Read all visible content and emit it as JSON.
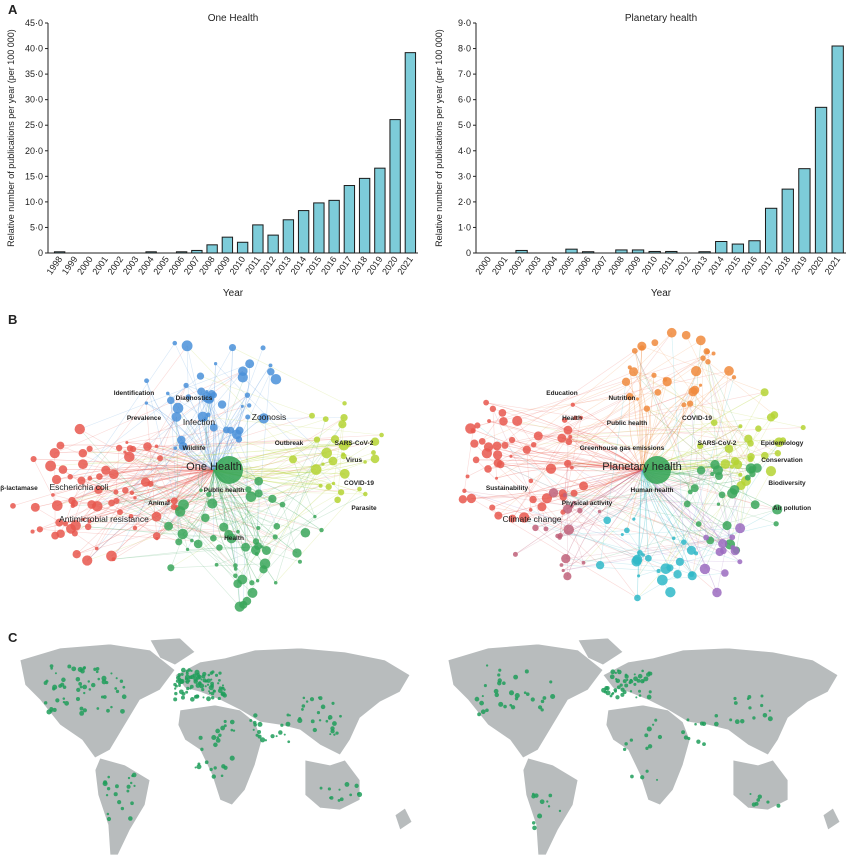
{
  "panel_labels": {
    "a": "A",
    "b": "B",
    "c": "C"
  },
  "colors": {
    "bar_fill": "#7dccd9",
    "bar_stroke": "#1a1a1a",
    "network_clusters": [
      "#e8574d",
      "#4a90d9",
      "#b5d334",
      "#3aa65a",
      "#f08a3c",
      "#9b6bbf",
      "#2fb8c8",
      "#c0617a"
    ],
    "map_land": "#b8bcbd",
    "map_points": "#1f9e5a"
  },
  "chart_data": [
    {
      "type": "bar",
      "title": "One Health",
      "xlabel": "Year",
      "ylabel": "Relative number of publications per year (per 100 000)",
      "ylim": [
        0,
        45
      ],
      "yticks": [
        "0",
        "5·0",
        "10·0",
        "15·0",
        "20·0",
        "25·0",
        "30·0",
        "35·0",
        "40·0",
        "45·0"
      ],
      "yticks_values": [
        0,
        5,
        10,
        15,
        20,
        25,
        30,
        35,
        40,
        45
      ],
      "categories": [
        "1998",
        "1999",
        "2000",
        "2001",
        "2002",
        "2003",
        "2004",
        "2005",
        "2006",
        "2007",
        "2008",
        "2009",
        "2010",
        "2011",
        "2012",
        "2013",
        "2014",
        "2015",
        "2016",
        "2017",
        "2018",
        "2019",
        "2020",
        "2021"
      ],
      "values": [
        0.2,
        0,
        0,
        0,
        0,
        0,
        0.1,
        0,
        0.1,
        0.5,
        1.6,
        3.1,
        2.1,
        5.5,
        3.5,
        6.5,
        8.3,
        9.8,
        10.3,
        13.2,
        14.6,
        16.6,
        26.1,
        39.2
      ],
      "grid": false
    },
    {
      "type": "bar",
      "title": "Planetary  health",
      "xlabel": "Year",
      "ylabel": "Relative number of publications per year (per 100 000)",
      "ylim": [
        0,
        9
      ],
      "yticks": [
        "0",
        "1·0",
        "2·0",
        "3·0",
        "4·0",
        "5·0",
        "6·0",
        "7·0",
        "8·0",
        "9·0"
      ],
      "yticks_values": [
        0,
        1,
        2,
        3,
        4,
        5,
        6,
        7,
        8,
        9
      ],
      "categories": [
        "2000",
        "2001",
        "2002",
        "2003",
        "2004",
        "2005",
        "2006",
        "2007",
        "2008",
        "2009",
        "2010",
        "2011",
        "2012",
        "2013",
        "2014",
        "2015",
        "2016",
        "2017",
        "2018",
        "2019",
        "2020",
        "2021"
      ],
      "values": [
        0,
        0,
        0.1,
        0,
        0,
        0.15,
        0.05,
        0,
        0.12,
        0.12,
        0.06,
        0.06,
        0,
        0.05,
        0.45,
        0.35,
        0.48,
        1.75,
        2.5,
        3.3,
        5.7,
        8.1
      ],
      "grid": false
    }
  ],
  "networks": [
    {
      "main_label": "One Health",
      "labels": [
        {
          "text": "One Health",
          "c": 3,
          "big": true
        },
        {
          "text": "Antimicrobial resistance",
          "c": 0,
          "big": true
        },
        {
          "text": "Escherichia coli",
          "c": 0,
          "big": true
        },
        {
          "text": "Zoonosis",
          "c": 1,
          "big": true
        },
        {
          "text": "Infection",
          "c": 1,
          "big": true
        },
        {
          "text": "Prevalence",
          "c": 0,
          "big": false
        },
        {
          "text": "SARS-CoV-2",
          "c": 2,
          "big": false
        },
        {
          "text": "COVID-19",
          "c": 2,
          "big": false
        },
        {
          "text": "Virus",
          "c": 2,
          "big": false
        },
        {
          "text": "Public health",
          "c": 3,
          "big": false
        },
        {
          "text": "Outbreak",
          "c": 2,
          "big": false
        },
        {
          "text": "Parasite",
          "c": 2,
          "big": false
        },
        {
          "text": "Identification",
          "c": 1,
          "big": false
        },
        {
          "text": "Diagnostics",
          "c": 1,
          "big": false
        },
        {
          "text": "Wildlife",
          "c": 1,
          "big": false
        },
        {
          "text": "Animal",
          "c": 0,
          "big": false
        },
        {
          "text": "Health",
          "c": 3,
          "big": false
        },
        {
          "text": "β-lactamase",
          "c": 0,
          "big": false
        }
      ]
    },
    {
      "main_label": "Planetary health",
      "labels": [
        {
          "text": "Planetary health",
          "c": 3,
          "big": true
        },
        {
          "text": "Climate change",
          "c": 3,
          "big": true
        },
        {
          "text": "Sustainability",
          "c": 0,
          "big": false
        },
        {
          "text": "COVID-19",
          "c": 2,
          "big": false
        },
        {
          "text": "Public health",
          "c": 3,
          "big": false
        },
        {
          "text": "Health",
          "c": 0,
          "big": false
        },
        {
          "text": "Epidemiology",
          "c": 0,
          "big": false
        },
        {
          "text": "Biodiversity",
          "c": 4,
          "big": false
        },
        {
          "text": "Conservation",
          "c": 4,
          "big": false
        },
        {
          "text": "Human health",
          "c": 4,
          "big": false
        },
        {
          "text": "SARS-CoV-2",
          "c": 2,
          "big": false
        },
        {
          "text": "Air pollution",
          "c": 6,
          "big": false
        },
        {
          "text": "Education",
          "c": 6,
          "big": false
        },
        {
          "text": "Nutrition",
          "c": 7,
          "big": false
        },
        {
          "text": "Greenhouse gas emissions",
          "c": 0,
          "big": false
        },
        {
          "text": "Physical activity",
          "c": 7,
          "big": false
        }
      ]
    }
  ]
}
